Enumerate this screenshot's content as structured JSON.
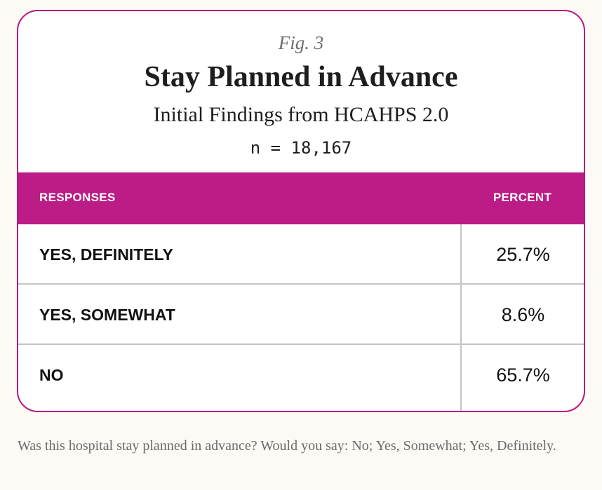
{
  "figure": {
    "label": "Fig. 3",
    "title": "Stay Planned in Advance",
    "subtitle": "Initial Findings from HCAHPS 2.0",
    "sample_size": "n = 18,167"
  },
  "colors": {
    "accent": "#bb1c86",
    "border": "#b5197f",
    "background": "#fdfaf6"
  },
  "chart_data": {
    "type": "table",
    "title": "Stay Planned in Advance",
    "subtitle": "Initial Findings from HCAHPS 2.0",
    "columns": [
      "RESPONSES",
      "PERCENT"
    ],
    "rows": [
      {
        "response": "YES, DEFINITELY",
        "percent": "25.7%"
      },
      {
        "response": "YES, SOMEWHAT",
        "percent": "8.6%"
      },
      {
        "response": "NO",
        "percent": "65.7%"
      }
    ]
  },
  "footnote": "Was this hospital stay planned in advance? Would you say: No; Yes, Somewhat; Yes, Definitely."
}
